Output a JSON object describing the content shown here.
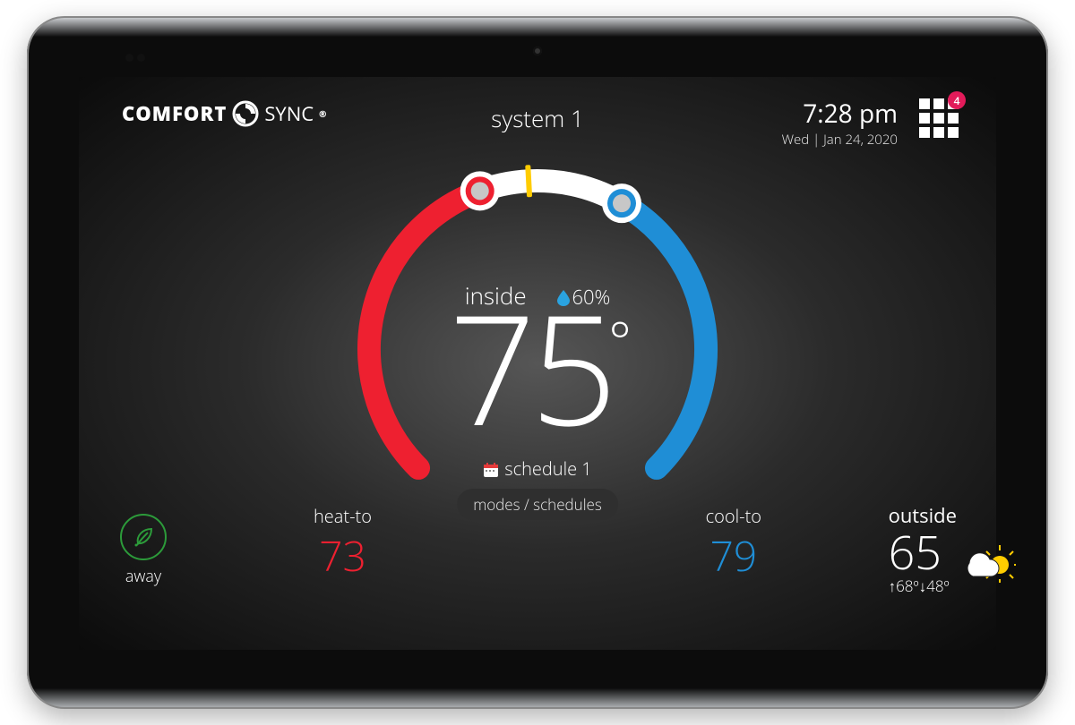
{
  "brand": {
    "word1": "COMFORT",
    "word2": "SYNC"
  },
  "system_name": "system 1",
  "clock": {
    "time": "7:28 pm",
    "date": "Wed | Jan 24, 2020"
  },
  "notifications": {
    "count": "4",
    "badge_color": "#e21b5a"
  },
  "inside": {
    "label": "inside",
    "temp": "75",
    "humidity": "60%",
    "humidity_color": "#2aa3e0"
  },
  "schedule": {
    "icon_color": "#e53b3b",
    "name": "schedule 1"
  },
  "modes_button": "modes / schedules",
  "heat": {
    "label": "heat-to",
    "value": "73",
    "color": "#ee2030"
  },
  "cool": {
    "label": "cool-to",
    "value": "79",
    "color": "#1f8ed6"
  },
  "away": {
    "label": "away",
    "ring_color": "#2c9b3a"
  },
  "outside": {
    "label": "outside",
    "temp": "65",
    "high": "68º",
    "low": "48º"
  },
  "dial": {
    "radius_outer": 188,
    "stroke": 26,
    "heat_arc": {
      "start_deg": 225,
      "end_deg": 110,
      "color": "#ee2030"
    },
    "cool_arc": {
      "start_deg": 60,
      "end_deg": -45,
      "color": "#1f8ed6"
    },
    "neutral_arc": {
      "start_deg": 110,
      "end_deg": 60,
      "color": "#ffffff"
    },
    "marker": {
      "angle_deg": 93,
      "color": "#ffcc00"
    },
    "heat_knob": {
      "angle_deg": 110,
      "ring": "#ee2030",
      "fill": "#c7c7c7"
    },
    "cool_knob": {
      "angle_deg": 60,
      "ring": "#1f8ed6",
      "fill": "#c7c7c7"
    }
  },
  "colors": {
    "text": "#ffffff",
    "bg_glow": "#565656"
  }
}
